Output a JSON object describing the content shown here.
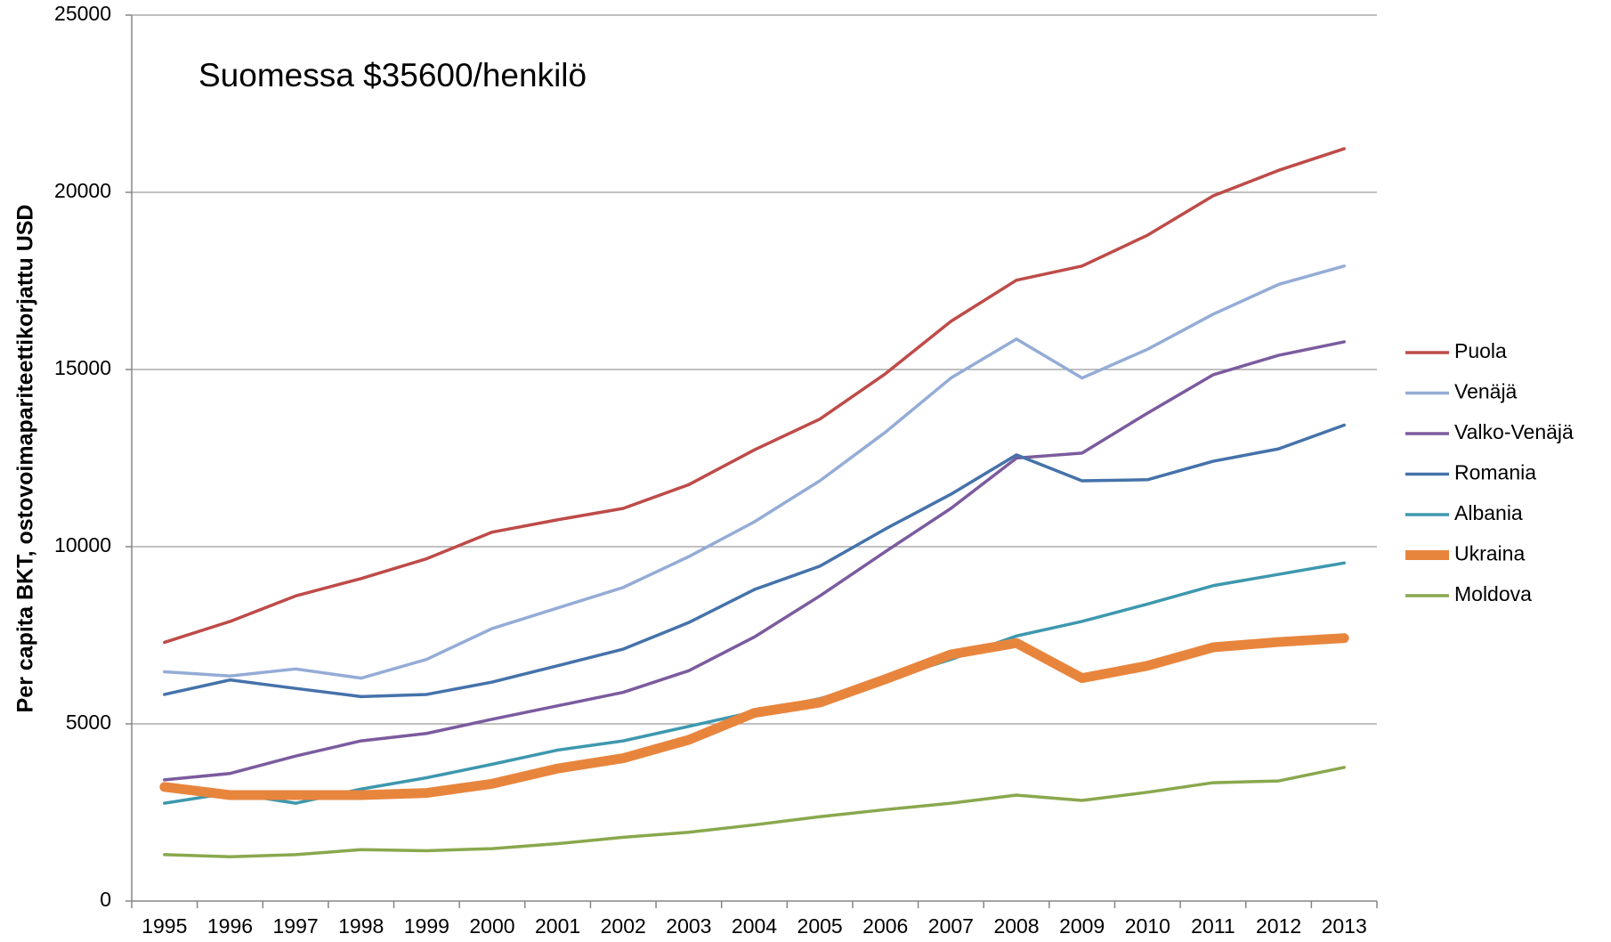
{
  "chart_data": {
    "type": "line",
    "annotation": "Suomessa $35600/henkilö",
    "y_label": "Per capita BKT, ostovoimapariteettikorjattu USD",
    "categories": [
      "1995",
      "1996",
      "1997",
      "1998",
      "1999",
      "2000",
      "2001",
      "2002",
      "2003",
      "2004",
      "2005",
      "2006",
      "2007",
      "2008",
      "2009",
      "2010",
      "2011",
      "2012",
      "2013"
    ],
    "ylim": [
      0,
      25000
    ],
    "yticks": [
      0,
      5000,
      10000,
      15000,
      20000,
      25000
    ],
    "grid": true,
    "legend": "right",
    "series": [
      {
        "name": "Puola",
        "color": "#be4b48",
        "width": 3.5,
        "values": [
          7300,
          7890,
          8610,
          9100,
          9660,
          10410,
          10760,
          11080,
          11750,
          12730,
          13600,
          14880,
          16360,
          17520,
          17920,
          18790,
          19900,
          20620,
          21230
        ]
      },
      {
        "name": "Venäjä",
        "color": "#94acd6",
        "width": 3.5,
        "values": [
          6470,
          6350,
          6550,
          6290,
          6820,
          7690,
          8270,
          8850,
          9720,
          10700,
          11860,
          13230,
          14760,
          15860,
          14760,
          15570,
          16560,
          17400,
          17920
        ]
      },
      {
        "name": "Valko-Venäjä",
        "color": "#7b5b9e",
        "width": 3.5,
        "values": [
          3420,
          3600,
          4090,
          4520,
          4730,
          5130,
          5510,
          5890,
          6500,
          7450,
          8610,
          9860,
          11080,
          12500,
          12640,
          13770,
          14850,
          15400,
          15780
        ]
      },
      {
        "name": "Romania",
        "color": "#4572aa",
        "width": 3.5,
        "values": [
          5830,
          6240,
          6000,
          5770,
          5830,
          6180,
          6640,
          7110,
          7860,
          8790,
          9450,
          10500,
          11480,
          12590,
          11860,
          11890,
          12410,
          12760,
          13430
        ]
      },
      {
        "name": "Albania",
        "color": "#3d98ae",
        "width": 3.5,
        "values": [
          2760,
          3050,
          2760,
          3160,
          3480,
          3860,
          4260,
          4520,
          4930,
          5340,
          5710,
          6240,
          6820,
          7480,
          7890,
          8380,
          8900,
          9220,
          9540
        ]
      },
      {
        "name": "Ukraina",
        "color": "#e8853d",
        "width": 11,
        "values": [
          3220,
          2990,
          2990,
          2990,
          3050,
          3310,
          3740,
          4030,
          4550,
          5310,
          5600,
          6260,
          6960,
          7280,
          6290,
          6640,
          7160,
          7310,
          7420
        ]
      },
      {
        "name": "Moldova",
        "color": "#89a84d",
        "width": 3.5,
        "values": [
          1310,
          1250,
          1310,
          1450,
          1420,
          1480,
          1620,
          1800,
          1940,
          2150,
          2380,
          2580,
          2760,
          2990,
          2840,
          3070,
          3340,
          3390,
          3770
        ]
      }
    ]
  }
}
